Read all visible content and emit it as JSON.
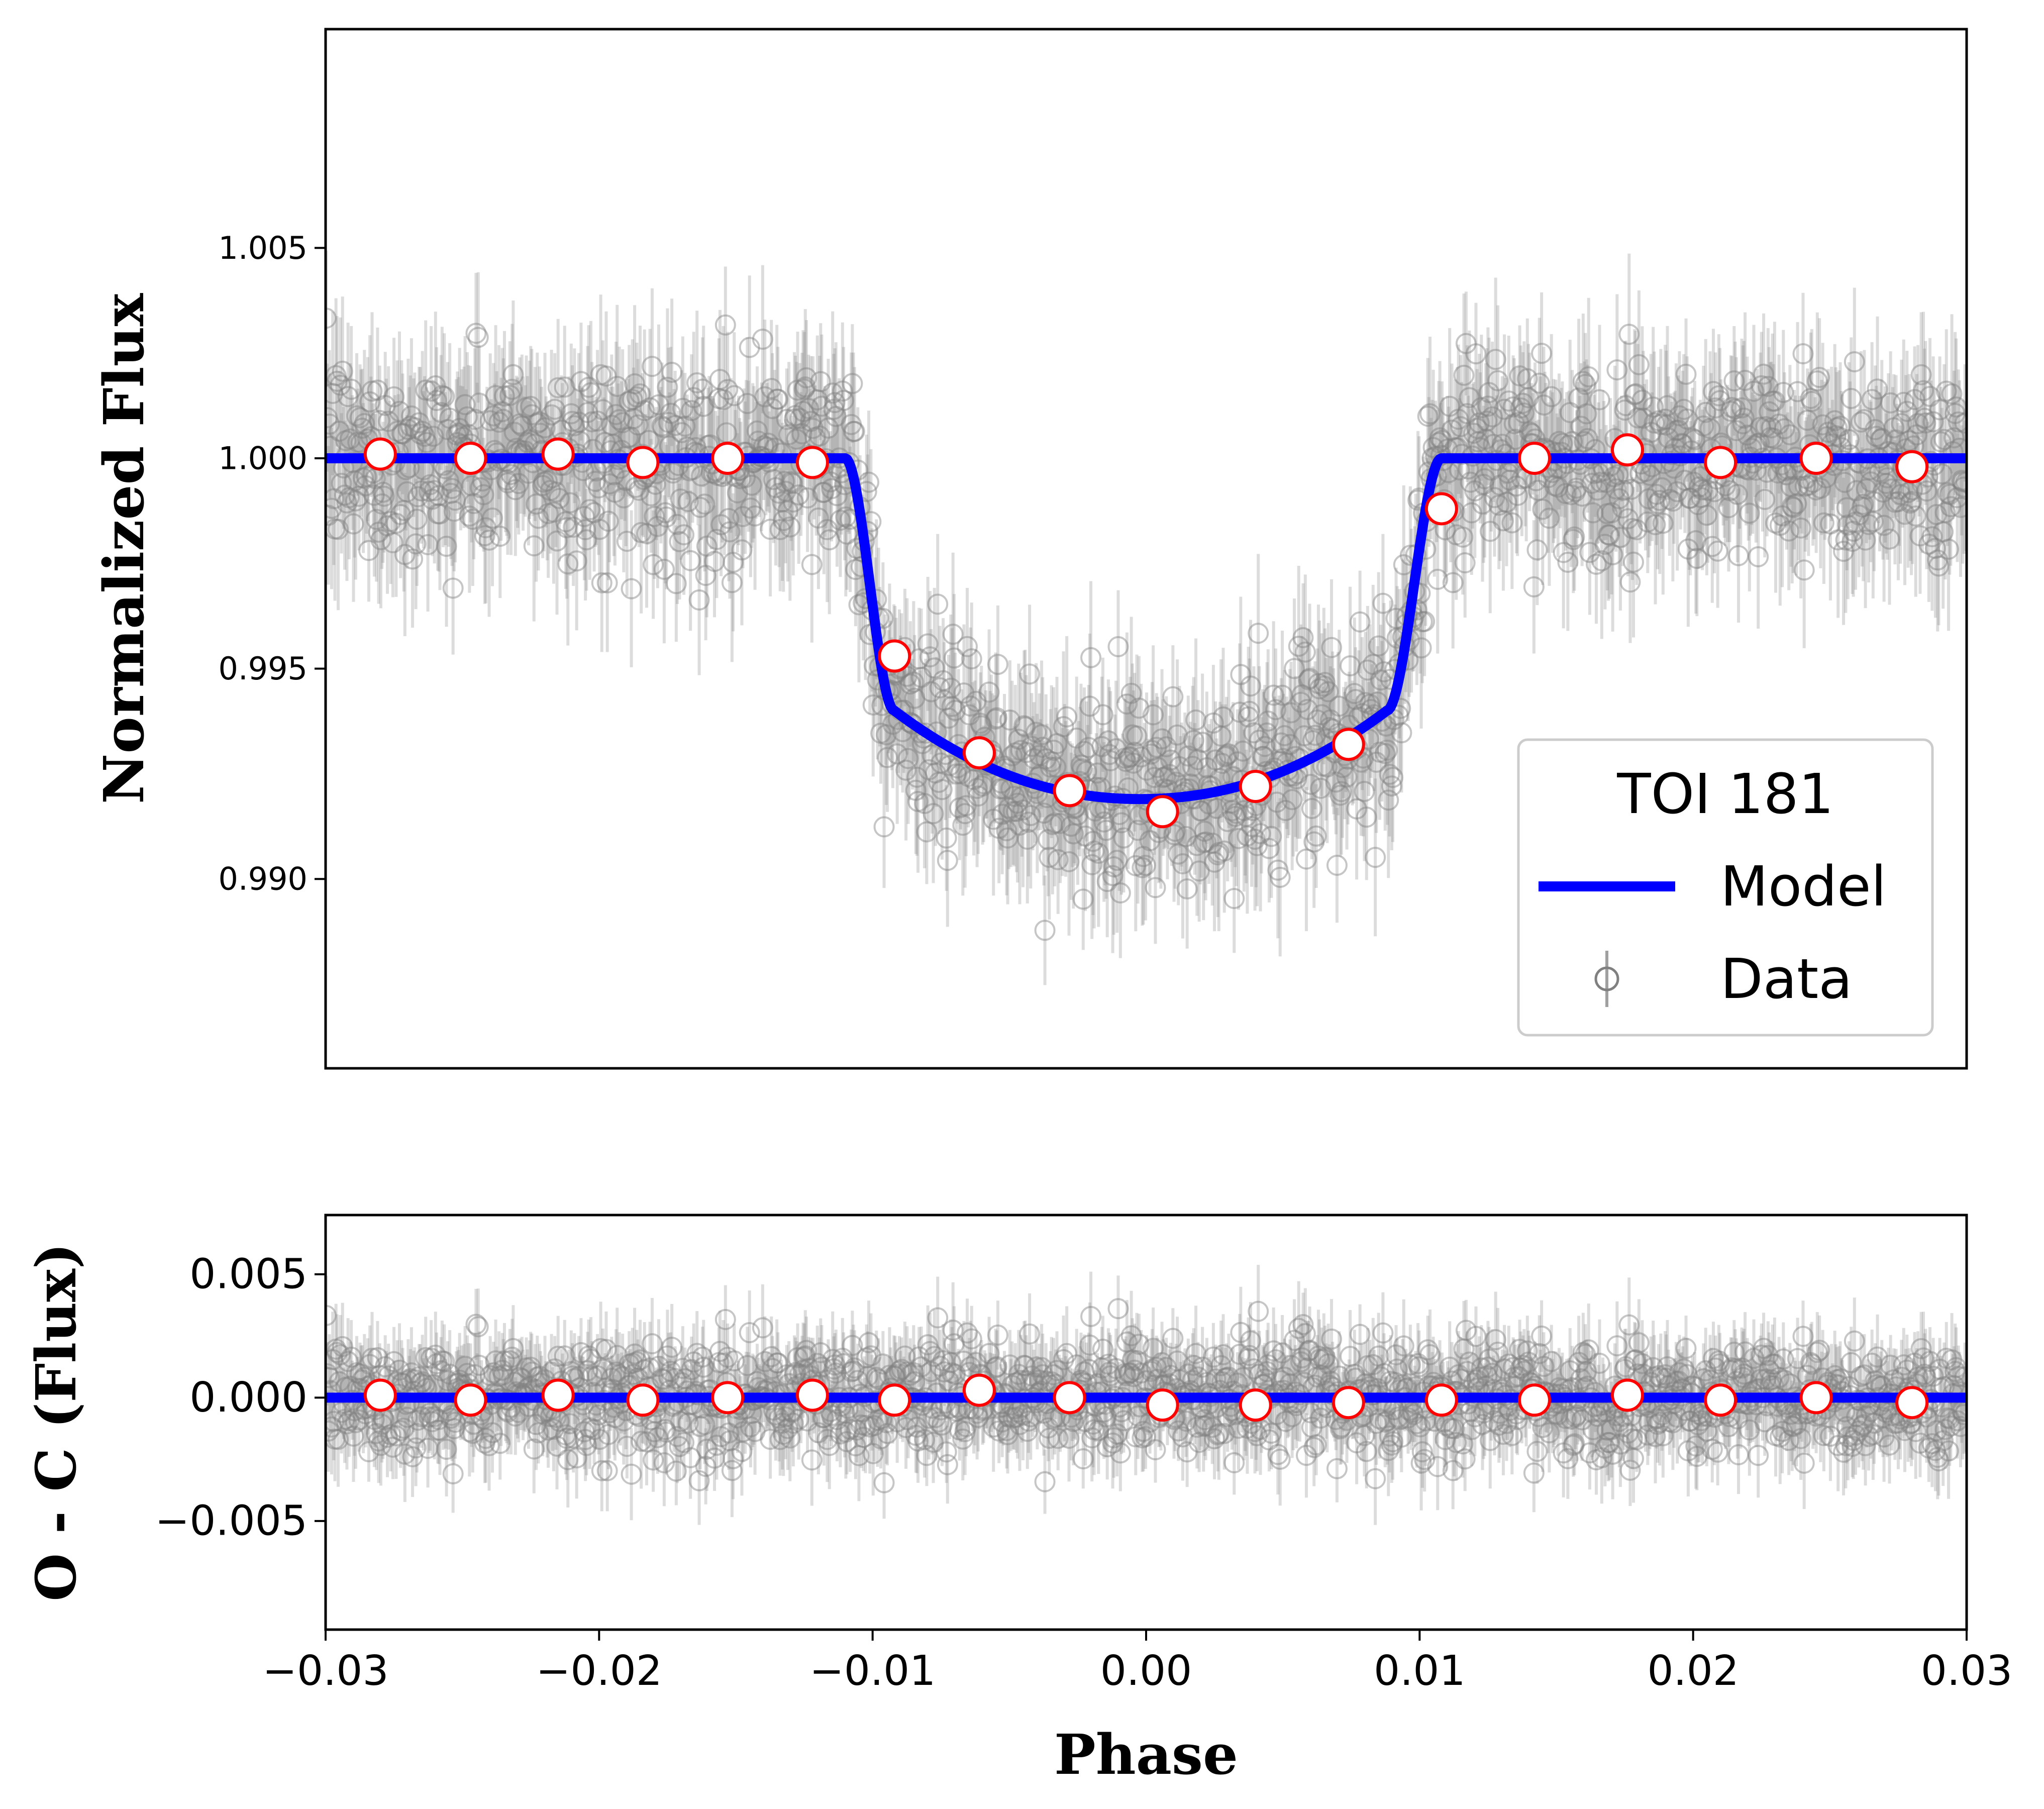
{
  "chart_data": [
    {
      "type": "scatter",
      "panel": "top",
      "title": "",
      "xlabel": "",
      "ylabel": "Normalized Flux",
      "xlim": [
        -0.03,
        0.03
      ],
      "ylim": [
        0.9855,
        1.0102
      ],
      "y_ticks": [
        0.99,
        0.995,
        1.0,
        1.005
      ],
      "y_tick_labels": [
        "0.990",
        "0.995",
        "1.000",
        "1.005"
      ],
      "legend": {
        "title": "TOI 181",
        "placement": "lower-right",
        "entries": [
          {
            "label": "Model",
            "marker": "line",
            "color": "#0000ff"
          },
          {
            "label": "Data",
            "marker": "open-circle-errorbar",
            "color": "#808080"
          }
        ]
      },
      "model": {
        "name": "Model",
        "color": "#0000ff",
        "baseline": 1.0,
        "t1": -0.011,
        "t2": -0.0092,
        "t3": 0.0088,
        "t4": 0.0108,
        "edge_depth_flux": 0.994,
        "center_flux": 0.9919
      },
      "data_scatter": {
        "name": "Data",
        "color": "#808080",
        "sigma": 0.0012,
        "typical_error": 0.0015,
        "n_points": 1500
      },
      "binned": {
        "x": [
          -0.028,
          -0.0247,
          -0.0215,
          -0.0184,
          -0.0153,
          -0.0122,
          -0.0092,
          -0.0061,
          -0.0028,
          0.0006,
          0.004,
          0.0074,
          0.0108,
          0.0142,
          0.0176,
          0.021,
          0.0245,
          0.028
        ],
        "y": [
          1.0001,
          1.0,
          1.0001,
          0.9999,
          1.0,
          0.9999,
          0.9953,
          0.993,
          0.9921,
          0.9916,
          0.9922,
          0.9932,
          0.9988,
          1.0,
          1.0002,
          0.9999,
          1.0,
          0.9998
        ],
        "face_color": "#ffffff",
        "edge_color": "#ff0000"
      }
    },
    {
      "type": "scatter",
      "panel": "bottom",
      "title": "",
      "xlabel": "Phase",
      "ylabel": "O - C (Flux)",
      "xlim": [
        -0.03,
        0.03
      ],
      "ylim": [
        -0.0094,
        0.0074
      ],
      "x_ticks": [
        -0.03,
        -0.02,
        -0.01,
        0.0,
        0.01,
        0.02,
        0.03
      ],
      "x_tick_labels": [
        "−0.03",
        "−0.02",
        "−0.01",
        "0.00",
        "0.01",
        "0.02",
        "0.03"
      ],
      "y_ticks": [
        -0.005,
        0.0,
        0.005
      ],
      "y_tick_labels": [
        "−0.005",
        "0.000",
        "0.005"
      ],
      "model": {
        "name": "Model",
        "color": "#0000ff",
        "value": 0.0
      },
      "data_scatter": {
        "name": "Data",
        "color": "#808080",
        "sigma": 0.0012,
        "typical_error": 0.0015,
        "n_points": 1500
      },
      "binned": {
        "x": [
          -0.028,
          -0.0247,
          -0.0215,
          -0.0184,
          -0.0153,
          -0.0122,
          -0.0092,
          -0.0061,
          -0.0028,
          0.0006,
          0.004,
          0.0074,
          0.0108,
          0.0142,
          0.0176,
          0.021,
          0.0245,
          0.028
        ],
        "y": [
          0.0001,
          -0.0001,
          0.0001,
          -0.0001,
          0.0,
          0.0001,
          -0.0001,
          0.0003,
          0.0,
          -0.0003,
          -0.0003,
          -0.0002,
          -0.0001,
          -0.0001,
          0.0001,
          -0.0001,
          0.0,
          -0.0002
        ],
        "face_color": "#ffffff",
        "edge_color": "#ff0000"
      }
    }
  ]
}
